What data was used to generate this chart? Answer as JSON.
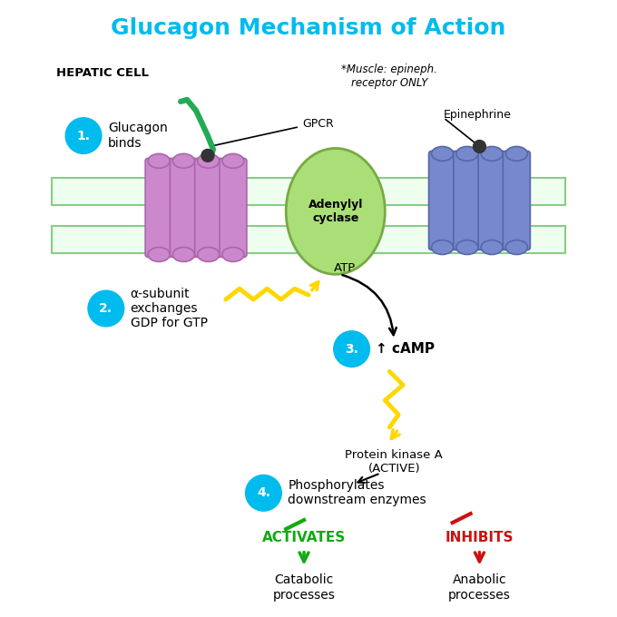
{
  "title": "Glucagon Mechanism of Action",
  "title_color": "#00BBEE",
  "title_fontsize": 18,
  "bg_color": "#FFFFFF",
  "membrane_edge_color": "#88CC88",
  "membrane_face_color": "#EEFFF0",
  "receptor1_color": "#CC88CC",
  "receptor1_edge": "#AA66AA",
  "receptor2_color": "#7788CC",
  "receptor2_edge": "#5566AA",
  "adenylyl_color": "#AADE77",
  "adenylyl_edge": "#77AA44",
  "step_circle_color": "#00BBEE",
  "arrow_color": "#222222",
  "yellow_color": "#FFD700",
  "green_color": "#11AA11",
  "red_color": "#CC1111",
  "snake_color": "#22AA55",
  "labels": {
    "hepatic_cell": "HEPATIC CELL",
    "gpcr": "GPCR",
    "epinephrine": "Epinephrine",
    "muscle_note": "*Muscle: epineph.\nreceptor ONLY",
    "step1": "1.",
    "glucagon_binds": "Glucagon\nbinds",
    "adenylyl": "Adenylyl\ncyclase",
    "step2": "2.",
    "alpha_subunit": "α-subunit\nexchanges\nGDP for GTP",
    "atp": "ATP",
    "step3": "3.",
    "camp": "↑ cAMP",
    "protein_kinase": "Protein kinase A\n(ACTIVE)",
    "step4": "4.",
    "phosphorylates": "Phosphorylates\ndownstream enzymes",
    "activates": "ACTIVATES",
    "inhibits": "INHIBITS",
    "catabolic": "Catabolic\nprocesses",
    "anabolic": "Anabolic\nprocesses"
  }
}
